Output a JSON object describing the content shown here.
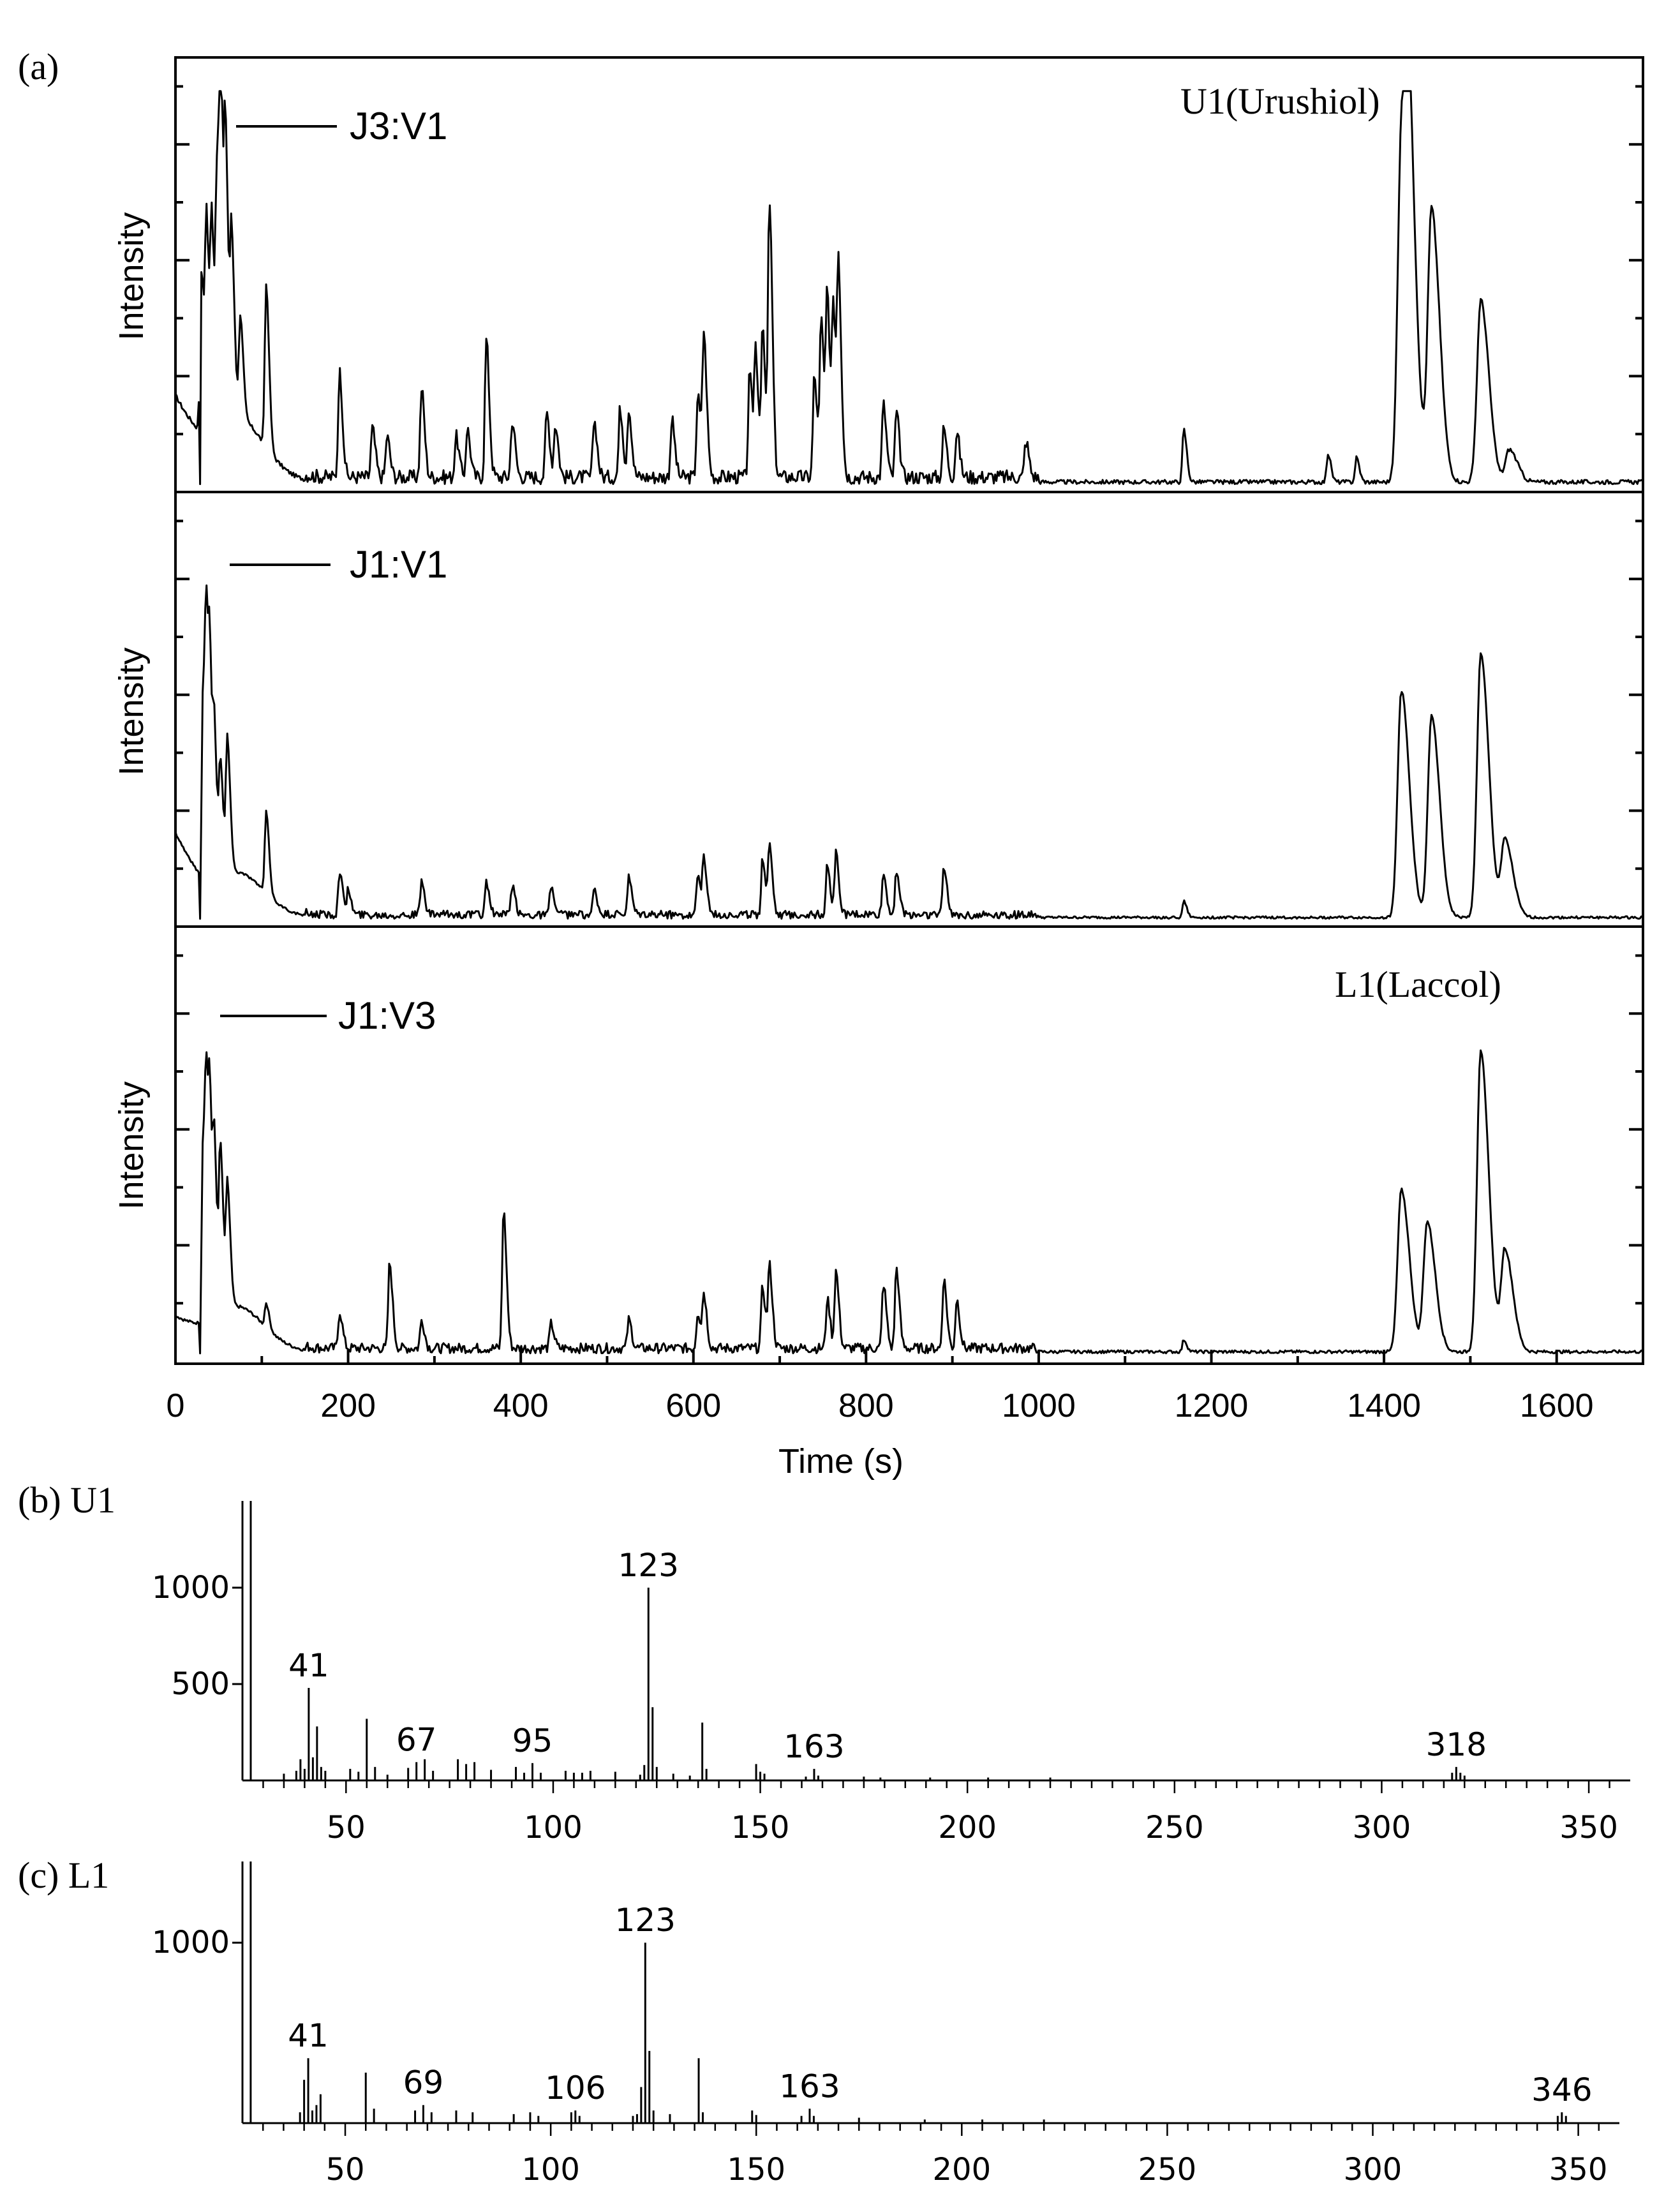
{
  "chart_data": [
    {
      "type": "line",
      "panel": "(a)",
      "xlabel": "Time (s)",
      "ylabel": "Intensity",
      "xlim": [
        0,
        1700
      ],
      "xticks": [
        0,
        200,
        400,
        600,
        800,
        1000,
        1200,
        1400,
        1600
      ],
      "series": [
        {
          "name": "J3:V1",
          "annotation": "U1(Urushiol)",
          "ylim": [
            0,
            1.0
          ],
          "baseline": 0.01,
          "noise": 0.035,
          "start_level": 0.2,
          "peaks": [
            [
              30,
              0.45
            ],
            [
              36,
              0.5
            ],
            [
              42,
              0.47
            ],
            [
              48,
              0.55
            ],
            [
              52,
              0.78
            ],
            [
              58,
              0.62
            ],
            [
              65,
              0.42
            ],
            [
              75,
              0.25
            ],
            [
              105,
              0.4
            ],
            [
              190,
              0.26
            ],
            [
              228,
              0.12
            ],
            [
              245,
              0.1
            ],
            [
              285,
              0.22
            ],
            [
              325,
              0.1
            ],
            [
              338,
              0.12
            ],
            [
              360,
              0.34
            ],
            [
              390,
              0.14
            ],
            [
              430,
              0.16
            ],
            [
              440,
              0.13
            ],
            [
              485,
              0.14
            ],
            [
              515,
              0.17
            ],
            [
              525,
              0.17
            ],
            [
              575,
              0.14
            ],
            [
              605,
              0.2
            ],
            [
              612,
              0.34
            ],
            [
              665,
              0.25
            ],
            [
              672,
              0.3
            ],
            [
              680,
              0.35
            ],
            [
              688,
              0.67
            ],
            [
              740,
              0.25
            ],
            [
              748,
              0.38
            ],
            [
              755,
              0.42
            ],
            [
              762,
              0.4
            ],
            [
              768,
              0.48
            ],
            [
              820,
              0.18
            ],
            [
              835,
              0.16
            ],
            [
              890,
              0.12
            ],
            [
              905,
              0.11
            ],
            [
              985,
              0.09
            ],
            [
              1168,
              0.13
            ],
            [
              1335,
              0.07
            ],
            [
              1368,
              0.06
            ],
            [
              1420,
              0.82
            ],
            [
              1428,
              0.6
            ],
            [
              1455,
              0.67
            ],
            [
              1512,
              0.45
            ],
            [
              1545,
              0.08
            ]
          ]
        },
        {
          "name": "J1:V1",
          "annotation": "",
          "ylim": [
            0,
            1.0
          ],
          "baseline": 0.01,
          "noise": 0.02,
          "start_level": 0.2,
          "peaks": [
            [
              32,
              0.52
            ],
            [
              36,
              0.48
            ],
            [
              40,
              0.38
            ],
            [
              45,
              0.3
            ],
            [
              52,
              0.27
            ],
            [
              60,
              0.33
            ],
            [
              105,
              0.2
            ],
            [
              190,
              0.11
            ],
            [
              200,
              0.06
            ],
            [
              285,
              0.08
            ],
            [
              360,
              0.08
            ],
            [
              390,
              0.07
            ],
            [
              435,
              0.07
            ],
            [
              485,
              0.06
            ],
            [
              525,
              0.09
            ],
            [
              605,
              0.1
            ],
            [
              612,
              0.13
            ],
            [
              680,
              0.14
            ],
            [
              688,
              0.17
            ],
            [
              755,
              0.12
            ],
            [
              765,
              0.15
            ],
            [
              820,
              0.1
            ],
            [
              835,
              0.11
            ],
            [
              890,
              0.12
            ],
            [
              1168,
              0.04
            ],
            [
              1420,
              0.56
            ],
            [
              1455,
              0.5
            ],
            [
              1512,
              0.65
            ],
            [
              1540,
              0.19
            ]
          ]
        },
        {
          "name": "J1:V3",
          "annotation": "L1(Laccol)",
          "ylim": [
            0,
            1.0
          ],
          "baseline": 0.01,
          "noise": 0.025,
          "start_level": 0.08,
          "peaks": [
            [
              32,
              0.48
            ],
            [
              36,
              0.42
            ],
            [
              40,
              0.38
            ],
            [
              45,
              0.35
            ],
            [
              52,
              0.39
            ],
            [
              60,
              0.3
            ],
            [
              105,
              0.06
            ],
            [
              190,
              0.09
            ],
            [
              248,
              0.21
            ],
            [
              285,
              0.07
            ],
            [
              380,
              0.34
            ],
            [
              435,
              0.06
            ],
            [
              525,
              0.07
            ],
            [
              605,
              0.09
            ],
            [
              612,
              0.13
            ],
            [
              680,
              0.15
            ],
            [
              688,
              0.2
            ],
            [
              755,
              0.12
            ],
            [
              765,
              0.19
            ],
            [
              820,
              0.16
            ],
            [
              835,
              0.2
            ],
            [
              890,
              0.17
            ],
            [
              905,
              0.12
            ],
            [
              1168,
              0.03
            ],
            [
              1420,
              0.4
            ],
            [
              1450,
              0.32
            ],
            [
              1512,
              0.74
            ],
            [
              1540,
              0.25
            ]
          ]
        }
      ]
    },
    {
      "type": "bar",
      "panel": "(b) U1",
      "xlabel": "",
      "ylabel": "",
      "xlim": [
        25,
        360
      ],
      "ylim": [
        0,
        1450
      ],
      "xticks": [
        50,
        100,
        150,
        200,
        250,
        300,
        350
      ],
      "yticks": [
        500,
        1000
      ],
      "x": [
        27,
        35,
        38,
        39,
        40,
        41,
        42,
        43,
        44,
        45,
        51,
        53,
        55,
        57,
        60,
        65,
        67,
        69,
        71,
        77,
        79,
        81,
        85,
        91,
        93,
        95,
        97,
        103,
        105,
        107,
        109,
        115,
        121,
        122,
        123,
        124,
        125,
        129,
        133,
        136,
        137,
        149,
        150,
        151,
        161,
        163,
        164,
        175,
        179,
        191,
        205,
        220,
        317,
        318,
        319,
        320
      ],
      "values": [
        1450,
        35,
        50,
        110,
        60,
        480,
        120,
        280,
        70,
        50,
        60,
        45,
        320,
        70,
        30,
        65,
        95,
        110,
        50,
        110,
        85,
        95,
        55,
        70,
        40,
        90,
        40,
        50,
        40,
        40,
        50,
        45,
        30,
        80,
        1000,
        380,
        70,
        35,
        25,
        300,
        60,
        85,
        45,
        35,
        20,
        60,
        25,
        20,
        15,
        15,
        15,
        15,
        40,
        70,
        40,
        25
      ],
      "peak_labels": [
        {
          "x": 41,
          "label": "41"
        },
        {
          "x": 67,
          "label": "67"
        },
        {
          "x": 95,
          "label": "95"
        },
        {
          "x": 123,
          "label": "123"
        },
        {
          "x": 163,
          "label": "163"
        },
        {
          "x": 318,
          "label": "318"
        }
      ]
    },
    {
      "type": "bar",
      "panel": "(c) L1",
      "xlabel": "",
      "ylabel": "",
      "xlim": [
        25,
        360
      ],
      "ylim": [
        0,
        1450
      ],
      "xticks": [
        50,
        100,
        150,
        200,
        250,
        300,
        350
      ],
      "yticks": [
        1000
      ],
      "x": [
        27,
        39,
        40,
        41,
        42,
        43,
        44,
        55,
        57,
        67,
        69,
        71,
        77,
        81,
        91,
        95,
        97,
        105,
        106,
        107,
        120,
        121,
        122,
        123,
        124,
        125,
        129,
        136,
        137,
        149,
        150,
        161,
        163,
        164,
        175,
        191,
        205,
        220,
        345,
        346,
        347
      ],
      "values": [
        1450,
        60,
        240,
        360,
        70,
        100,
        160,
        280,
        80,
        70,
        100,
        60,
        70,
        60,
        50,
        60,
        40,
        60,
        70,
        40,
        40,
        50,
        200,
        1000,
        400,
        70,
        50,
        360,
        60,
        70,
        45,
        40,
        80,
        40,
        30,
        20,
        20,
        20,
        40,
        60,
        40
      ],
      "peak_labels": [
        {
          "x": 41,
          "label": "41"
        },
        {
          "x": 69,
          "label": "69"
        },
        {
          "x": 106,
          "label": "106"
        },
        {
          "x": 123,
          "label": "123"
        },
        {
          "x": 163,
          "label": "163"
        },
        {
          "x": 346,
          "label": "346"
        }
      ]
    }
  ]
}
